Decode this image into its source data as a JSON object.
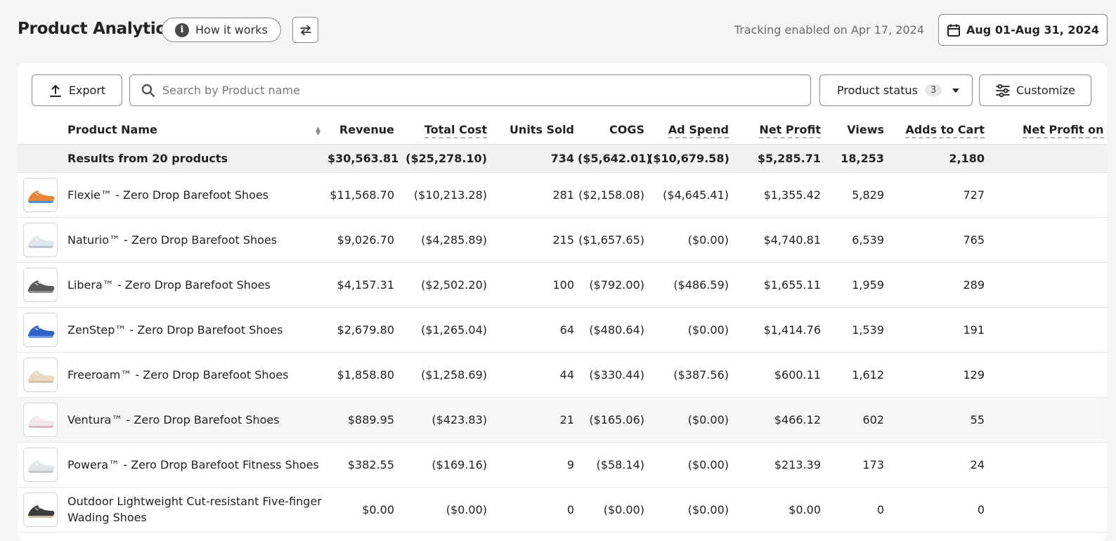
{
  "header": {
    "title": "Product Analytics",
    "how_it_works": "How it works",
    "tracking": "Tracking enabled on Apr 17, 2024",
    "date_range": "Aug 01-Aug 31, 2024"
  },
  "toolbar": {
    "export_label": "Export",
    "search_placeholder": "Search by Product name",
    "status_label": "Product status",
    "status_count": "3",
    "customize_label": "Customize"
  },
  "table": {
    "columns": [
      "Product Name",
      "Revenue",
      "Total Cost",
      "Units Sold",
      "COGS",
      "Ad Spend",
      "Net Profit",
      "Views",
      "Adds to Cart",
      "Net Profit on"
    ],
    "summary": {
      "label": "Results from 20 products",
      "revenue": "$30,563.81",
      "total_cost": "($25,278.10)",
      "units": "734",
      "cogs": "($5,642.01)",
      "ad_spend": "($10,679.58)",
      "net_profit": "$5,285.71",
      "views": "18,253",
      "atc": "2,180"
    },
    "rows": [
      {
        "name": "Flexie™ - Zero Drop Barefoot Shoes",
        "revenue": "$11,568.70",
        "total_cost": "($10,213.28)",
        "units": "281",
        "cogs": "($2,158.08)",
        "ad_spend": "($4,645.41)",
        "net_profit": "$1,355.42",
        "views": "5,829",
        "atc": "727",
        "colors": [
          "#e8873a",
          "#4a90d9"
        ]
      },
      {
        "name": "Naturio™ - Zero Drop Barefoot Shoes",
        "revenue": "$9,026.70",
        "total_cost": "($4,285.89)",
        "units": "215",
        "cogs": "($1,657.65)",
        "ad_spend": "($0.00)",
        "net_profit": "$4,740.81",
        "views": "6,539",
        "atc": "765",
        "colors": [
          "#dfe6ee",
          "#b9c6d6"
        ]
      },
      {
        "name": "Libera™ - Zero Drop Barefoot Shoes",
        "revenue": "$4,157.31",
        "total_cost": "($2,502.20)",
        "units": "100",
        "cogs": "($792.00)",
        "ad_spend": "($486.59)",
        "net_profit": "$1,655.11",
        "views": "1,959",
        "atc": "289",
        "colors": [
          "#5b5b5b",
          "#8e8e8e"
        ]
      },
      {
        "name": "ZenStep™ - Zero Drop Barefoot Shoes",
        "revenue": "$2,679.80",
        "total_cost": "($1,265.04)",
        "units": "64",
        "cogs": "($480.64)",
        "ad_spend": "($0.00)",
        "net_profit": "$1,414.76",
        "views": "1,539",
        "atc": "191",
        "colors": [
          "#2f62c9",
          "#6c9af0"
        ]
      },
      {
        "name": "Freeroam™ - Zero Drop Barefoot Shoes",
        "revenue": "$1,858.80",
        "total_cost": "($1,258.69)",
        "units": "44",
        "cogs": "($330.44)",
        "ad_spend": "($387.56)",
        "net_profit": "$600.11",
        "views": "1,612",
        "atc": "129",
        "colors": [
          "#e9d8c2",
          "#d6c0a2"
        ]
      },
      {
        "name": "Ventura™ - Zero Drop Barefoot Shoes",
        "revenue": "$889.95",
        "total_cost": "($423.83)",
        "units": "21",
        "cogs": "($165.06)",
        "ad_spend": "($0.00)",
        "net_profit": "$466.12",
        "views": "602",
        "atc": "55",
        "colors": [
          "#f1e6ea",
          "#d9b8c4"
        ]
      },
      {
        "name": "Powera™ - Zero Drop Barefoot Fitness Shoes",
        "revenue": "$382.55",
        "total_cost": "($169.16)",
        "units": "9",
        "cogs": "($58.14)",
        "ad_spend": "($0.00)",
        "net_profit": "$213.39",
        "views": "173",
        "atc": "24",
        "colors": [
          "#e2e5e8",
          "#c3c8cd"
        ]
      },
      {
        "name": "Outdoor Lightweight Cut-resistant Five-finger Wading Shoes",
        "revenue": "$0.00",
        "total_cost": "($0.00)",
        "units": "0",
        "cogs": "($0.00)",
        "ad_spend": "($0.00)",
        "net_profit": "$0.00",
        "views": "0",
        "atc": "0",
        "colors": [
          "#3b3b3b",
          "#c9b9a8"
        ]
      }
    ]
  }
}
